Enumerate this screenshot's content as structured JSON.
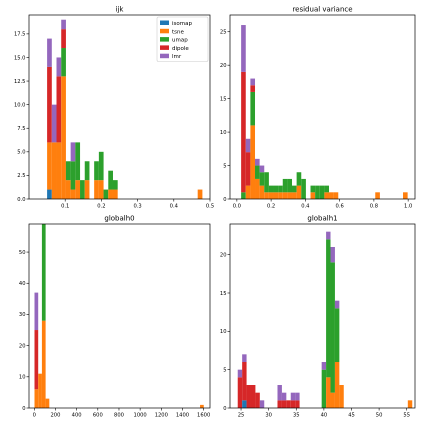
{
  "chart_data": [
    {
      "type": "bar",
      "stacked": true,
      "title": "ijk",
      "xlim": [
        0.0,
        0.5
      ],
      "ylim": [
        0,
        19.5
      ],
      "xticks": [
        "0.1",
        "0.2",
        "0.3",
        "0.4",
        "0.5"
      ],
      "xtick_values": [
        0.1,
        0.2,
        0.3,
        0.4,
        0.5
      ],
      "yticks": [
        "0.0",
        "2.5",
        "5.0",
        "7.5",
        "10.0",
        "12.5",
        "15.0",
        "17.5"
      ],
      "ytick_values": [
        0,
        2.5,
        5,
        7.5,
        10,
        12.5,
        15,
        17.5
      ],
      "legend": {
        "placement": "top-right",
        "entries": [
          "isomap",
          "tsne",
          "umap",
          "dipole",
          "lmr"
        ]
      },
      "bins": [
        {
          "x0": 0.05,
          "x1": 0.063,
          "values": [
            1,
            5,
            0,
            8,
            3
          ]
        },
        {
          "x0": 0.063,
          "x1": 0.076,
          "values": [
            0,
            6,
            0,
            0,
            4
          ]
        },
        {
          "x0": 0.076,
          "x1": 0.089,
          "values": [
            0,
            6,
            0,
            7,
            2
          ]
        },
        {
          "x0": 0.089,
          "x1": 0.102,
          "values": [
            0,
            13,
            3,
            2,
            1
          ]
        },
        {
          "x0": 0.102,
          "x1": 0.115,
          "values": [
            0,
            2,
            2,
            0,
            0
          ]
        },
        {
          "x0": 0.115,
          "x1": 0.128,
          "values": [
            0,
            1,
            3,
            0,
            2
          ]
        },
        {
          "x0": 0.128,
          "x1": 0.141,
          "values": [
            0,
            2,
            4,
            0,
            0
          ]
        },
        {
          "x0": 0.141,
          "x1": 0.154,
          "values": [
            0,
            0,
            2,
            0,
            0
          ]
        },
        {
          "x0": 0.154,
          "x1": 0.167,
          "values": [
            0,
            2,
            2,
            0,
            0
          ]
        },
        {
          "x0": 0.18,
          "x1": 0.193,
          "values": [
            0,
            2,
            2,
            0,
            0
          ]
        },
        {
          "x0": 0.193,
          "x1": 0.206,
          "values": [
            0,
            2,
            3,
            0,
            0
          ]
        },
        {
          "x0": 0.206,
          "x1": 0.219,
          "values": [
            0,
            0,
            1,
            0,
            0
          ]
        },
        {
          "x0": 0.219,
          "x1": 0.232,
          "values": [
            0,
            1,
            2,
            0,
            0
          ]
        },
        {
          "x0": 0.232,
          "x1": 0.245,
          "values": [
            0,
            1,
            1,
            0,
            0
          ]
        },
        {
          "x0": 0.466,
          "x1": 0.479,
          "values": [
            0,
            1,
            0,
            0,
            0
          ]
        }
      ]
    },
    {
      "type": "bar",
      "stacked": true,
      "title": "residual variance",
      "xlim": [
        -0.04,
        1.04
      ],
      "ylim": [
        0,
        27.5
      ],
      "xticks": [
        "0.0",
        "0.2",
        "0.4",
        "0.6",
        "0.8",
        "1.0"
      ],
      "xtick_values": [
        0,
        0.2,
        0.4,
        0.6,
        0.8,
        1.0
      ],
      "yticks": [
        "0",
        "5",
        "10",
        "15",
        "20",
        "25"
      ],
      "ytick_values": [
        0,
        5,
        10,
        15,
        20,
        25
      ],
      "bins": [
        {
          "x0": 0.025,
          "x1": 0.052,
          "values": [
            0,
            0,
            1,
            18,
            7
          ]
        },
        {
          "x0": 0.052,
          "x1": 0.079,
          "values": [
            0,
            2,
            0,
            5,
            2
          ]
        },
        {
          "x0": 0.079,
          "x1": 0.106,
          "values": [
            0,
            11,
            5,
            1,
            1
          ]
        },
        {
          "x0": 0.106,
          "x1": 0.133,
          "values": [
            0,
            3,
            2,
            0,
            1
          ]
        },
        {
          "x0": 0.133,
          "x1": 0.16,
          "values": [
            0,
            2,
            2,
            0,
            1
          ]
        },
        {
          "x0": 0.16,
          "x1": 0.187,
          "values": [
            0,
            1,
            3,
            0,
            0
          ]
        },
        {
          "x0": 0.187,
          "x1": 0.214,
          "values": [
            0,
            1,
            1,
            0,
            0
          ]
        },
        {
          "x0": 0.214,
          "x1": 0.241,
          "values": [
            0,
            1,
            1,
            0,
            0
          ]
        },
        {
          "x0": 0.241,
          "x1": 0.268,
          "values": [
            0,
            1,
            1,
            0,
            0
          ]
        },
        {
          "x0": 0.268,
          "x1": 0.295,
          "values": [
            0,
            1,
            2,
            0,
            0
          ]
        },
        {
          "x0": 0.295,
          "x1": 0.322,
          "values": [
            0,
            1,
            2,
            0,
            0
          ]
        },
        {
          "x0": 0.322,
          "x1": 0.349,
          "values": [
            0,
            1,
            1,
            0,
            0
          ]
        },
        {
          "x0": 0.349,
          "x1": 0.376,
          "values": [
            0,
            2,
            2,
            0,
            0
          ]
        },
        {
          "x0": 0.376,
          "x1": 0.403,
          "values": [
            0,
            0,
            3,
            0,
            0
          ]
        },
        {
          "x0": 0.43,
          "x1": 0.457,
          "values": [
            0,
            1,
            1,
            0,
            0
          ]
        },
        {
          "x0": 0.457,
          "x1": 0.484,
          "values": [
            0,
            0,
            2,
            0,
            0
          ]
        },
        {
          "x0": 0.484,
          "x1": 0.511,
          "values": [
            0,
            0,
            2,
            0,
            0
          ]
        },
        {
          "x0": 0.511,
          "x1": 0.538,
          "values": [
            0,
            1,
            1,
            0,
            0
          ]
        },
        {
          "x0": 0.538,
          "x1": 0.565,
          "values": [
            0,
            1,
            0,
            0,
            0
          ]
        },
        {
          "x0": 0.565,
          "x1": 0.592,
          "values": [
            0,
            1,
            0,
            0,
            0
          ]
        },
        {
          "x0": 0.808,
          "x1": 0.835,
          "values": [
            0,
            1,
            0,
            0,
            0
          ]
        },
        {
          "x0": 0.97,
          "x1": 0.997,
          "values": [
            0,
            1,
            0,
            0,
            0
          ]
        }
      ]
    },
    {
      "type": "bar",
      "stacked": true,
      "title": "globalh0",
      "xlim": [
        -50,
        1660
      ],
      "ylim": [
        0,
        59
      ],
      "xticks": [
        "0",
        "200",
        "400",
        "600",
        "800",
        "1000",
        "1200",
        "1400",
        "1600"
      ],
      "xtick_values": [
        0,
        200,
        400,
        600,
        800,
        1000,
        1200,
        1400,
        1600
      ],
      "yticks": [
        "0",
        "10",
        "20",
        "30",
        "40",
        "50"
      ],
      "ytick_values": [
        0,
        10,
        20,
        30,
        40,
        50
      ],
      "bins": [
        {
          "x0": 2,
          "x1": 37,
          "values": [
            0,
            6,
            0,
            19,
            12
          ]
        },
        {
          "x0": 37,
          "x1": 72,
          "values": [
            0,
            11,
            0,
            0,
            0
          ]
        },
        {
          "x0": 72,
          "x1": 107,
          "values": [
            0,
            28,
            31,
            0,
            0
          ]
        },
        {
          "x0": 107,
          "x1": 142,
          "values": [
            0,
            3,
            0,
            0,
            0
          ]
        },
        {
          "x0": 1566,
          "x1": 1601,
          "values": [
            0,
            1,
            0,
            0,
            0
          ]
        }
      ]
    },
    {
      "type": "bar",
      "stacked": true,
      "title": "globalh1",
      "xlim": [
        23,
        56.5
      ],
      "ylim": [
        0,
        24
      ],
      "xticks": [
        "25",
        "30",
        "35",
        "40",
        "45",
        "50",
        "55"
      ],
      "xtick_values": [
        25,
        30,
        35,
        40,
        45,
        50,
        55
      ],
      "yticks": [
        "0",
        "5",
        "10",
        "15",
        "20"
      ],
      "ytick_values": [
        0,
        5,
        10,
        15,
        20
      ],
      "bins": [
        {
          "x0": 24.4,
          "x1": 25.2,
          "values": [
            0,
            0,
            0,
            4,
            1
          ]
        },
        {
          "x0": 25.2,
          "x1": 26.0,
          "values": [
            1,
            0,
            0,
            5,
            1
          ]
        },
        {
          "x0": 26.0,
          "x1": 26.8,
          "values": [
            0,
            0,
            0,
            3,
            0
          ]
        },
        {
          "x0": 26.8,
          "x1": 27.6,
          "values": [
            0,
            0,
            0,
            3,
            0
          ]
        },
        {
          "x0": 27.6,
          "x1": 28.4,
          "values": [
            0,
            0,
            0,
            2,
            0
          ]
        },
        {
          "x0": 28.4,
          "x1": 29.2,
          "values": [
            0,
            0,
            0,
            0,
            1
          ]
        },
        {
          "x0": 31.6,
          "x1": 32.4,
          "values": [
            0,
            0,
            0,
            1,
            2
          ]
        },
        {
          "x0": 32.4,
          "x1": 33.2,
          "values": [
            0,
            0,
            0,
            1,
            1
          ]
        },
        {
          "x0": 33.2,
          "x1": 34.0,
          "values": [
            0,
            0,
            0,
            1,
            0
          ]
        },
        {
          "x0": 34.0,
          "x1": 34.8,
          "values": [
            0,
            0,
            0,
            1,
            1
          ]
        },
        {
          "x0": 34.8,
          "x1": 35.6,
          "values": [
            0,
            0,
            0,
            1,
            1
          ]
        },
        {
          "x0": 39.6,
          "x1": 40.4,
          "values": [
            0,
            0,
            5,
            0,
            1
          ]
        },
        {
          "x0": 40.4,
          "x1": 41.2,
          "values": [
            0,
            4,
            18,
            0,
            1
          ]
        },
        {
          "x0": 41.2,
          "x1": 42.0,
          "values": [
            0,
            2,
            17,
            0,
            2
          ]
        },
        {
          "x0": 42.0,
          "x1": 42.8,
          "values": [
            0,
            6,
            7,
            0,
            1
          ]
        },
        {
          "x0": 42.8,
          "x1": 43.6,
          "values": [
            0,
            3,
            0,
            0,
            0
          ]
        },
        {
          "x0": 55.2,
          "x1": 56.0,
          "values": [
            0,
            1,
            0,
            0,
            0
          ]
        }
      ]
    }
  ],
  "series_colors": [
    "#1f77b4",
    "#ff7f0e",
    "#2ca02c",
    "#d62728",
    "#9467bd"
  ],
  "legend_labels": [
    "isomap",
    "tsne",
    "umap",
    "dipole",
    "lmr"
  ]
}
